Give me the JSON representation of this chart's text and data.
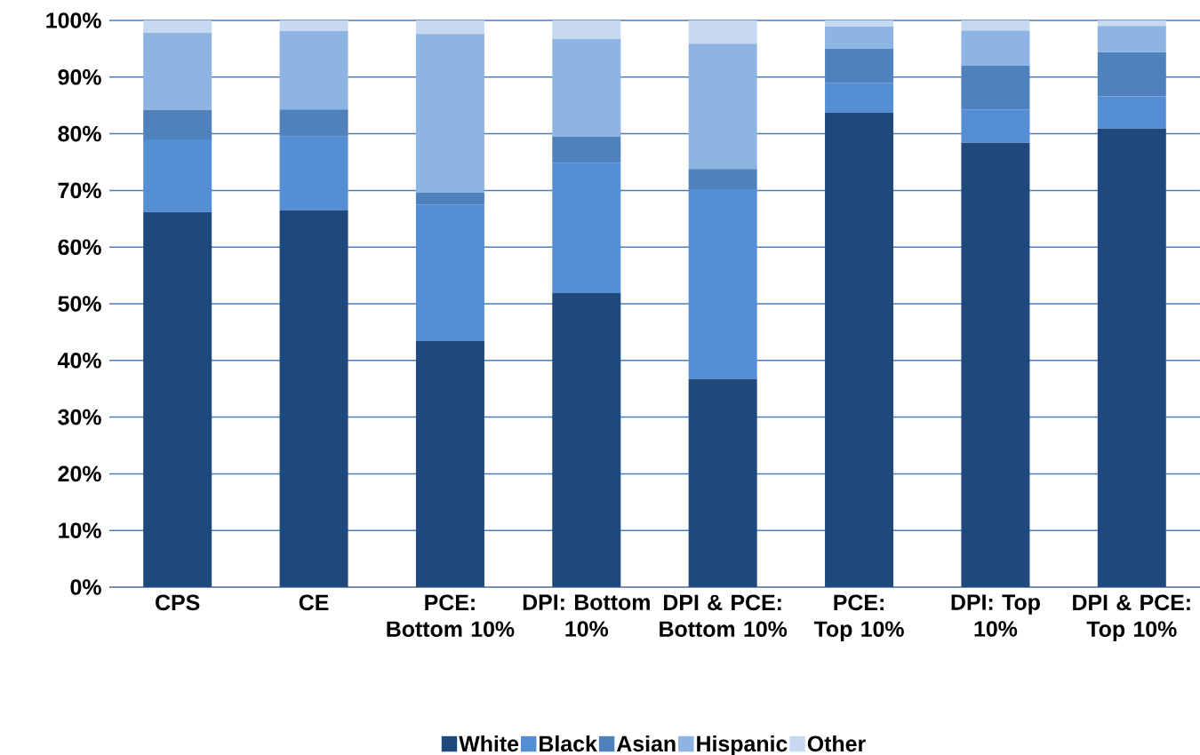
{
  "chart_data": {
    "type": "bar",
    "stacked": true,
    "categories": [
      "CPS",
      "CE",
      "PCE: Bottom 10%",
      "DPI: Bottom 10%",
      "DPI & PCE: Bottom 10%",
      "PCE: Top 10%",
      "DPI: Top 10%",
      "DPI & PCE: Top 10%"
    ],
    "series": [
      {
        "name": "White",
        "color": "#1f497d",
        "values": [
          66.2,
          66.5,
          43.4,
          51.9,
          36.7,
          83.7,
          78.4,
          80.9
        ]
      },
      {
        "name": "Black",
        "color": "#558ed5",
        "values": [
          12.8,
          13.0,
          24.1,
          22.9,
          33.5,
          5.2,
          5.9,
          5.7
        ]
      },
      {
        "name": "Asian",
        "color": "#4f81bd",
        "values": [
          5.2,
          4.8,
          2.1,
          4.7,
          3.6,
          6.1,
          7.7,
          7.8
        ]
      },
      {
        "name": "Hispanic",
        "color": "#8eb4e3",
        "values": [
          13.6,
          13.8,
          28.0,
          17.2,
          22.1,
          3.9,
          6.2,
          4.6
        ]
      },
      {
        "name": "Other",
        "color": "#c6d9f1",
        "values": [
          2.2,
          1.9,
          2.4,
          3.3,
          4.1,
          1.1,
          1.8,
          1.0
        ]
      }
    ],
    "ylim": [
      0,
      100
    ],
    "yticks": [
      {
        "value": 0,
        "label": "0%"
      },
      {
        "value": 10,
        "label": "10%"
      },
      {
        "value": 20,
        "label": "20%"
      },
      {
        "value": 30,
        "label": "30%"
      },
      {
        "value": 40,
        "label": "40%"
      },
      {
        "value": 50,
        "label": "50%"
      },
      {
        "value": 60,
        "label": "60%"
      },
      {
        "value": 70,
        "label": "70%"
      },
      {
        "value": 80,
        "label": "80%"
      },
      {
        "value": 90,
        "label": "90%"
      },
      {
        "value": 100,
        "label": "100%"
      }
    ],
    "grid": "y",
    "legend": "bottom"
  }
}
